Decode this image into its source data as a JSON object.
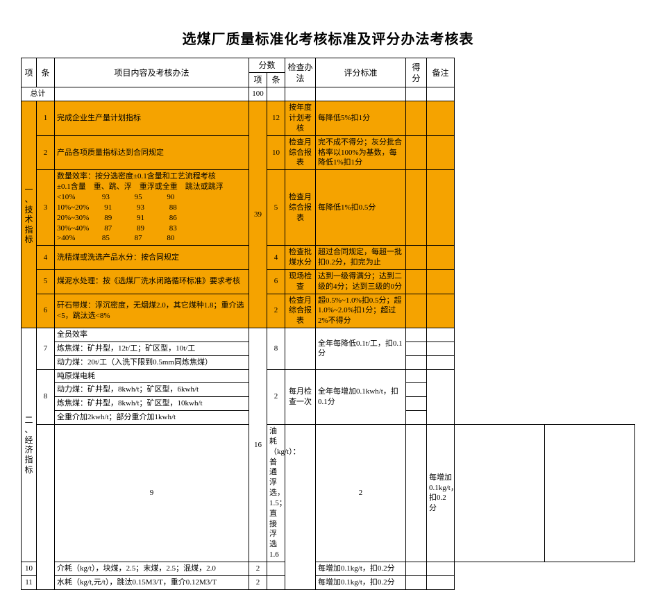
{
  "title": "选煤厂质量标准化考核标准及评分办法考核表",
  "headers": {
    "xiang": "项",
    "tiao": "条",
    "content": "项目内容及考核办法",
    "fenshu": "分数",
    "fen_xiang": "项",
    "fen_tiao": "条",
    "method": "检查办法",
    "std": "评分标准",
    "score": "得分",
    "note": "备注"
  },
  "total": {
    "label": "总计",
    "score": "100"
  },
  "colors": {
    "highlight": "#f5a300",
    "border": "#000000",
    "background": "#ffffff"
  },
  "section1": {
    "label": "一\n、\n技\n术\n指\n标",
    "xiang_score": "39",
    "rows": [
      {
        "no": "1",
        "content": "完成企业生产量计划指标",
        "tiao_score": "12",
        "method": "按年度\n计划考\n核",
        "std": "每降低5%扣1分"
      },
      {
        "no": "2",
        "content": "产品各项质量指标达到合同规定",
        "tiao_score": "10",
        "method": "检查月\n综合报\n表",
        "std": "完不成不得分；灰分批合格率以100%为基数，每降低1%扣1分"
      },
      {
        "no": "3",
        "content": "数量效率：按分选密度±0.1含量和工艺流程考核\n±0.1含量    重、跳、浮    重浮或全重    跳汰或跳浮\n<10%              93             95             90\n10%~20%        91             93             88\n20%~30%        89             91             86\n30%~40%        87             89             83\n>40%              85             87             80",
        "tiao_score": "5",
        "method": "检查月\n综合报\n表",
        "std": "每降低1%扣0.5分"
      },
      {
        "no": "4",
        "content": "洗精煤或洗选产品水分：按合同规定",
        "tiao_score": "4",
        "method": "检查批\n煤水分",
        "std": "超过合同规定，每超一批扣0.2分，扣完为止"
      },
      {
        "no": "5",
        "content": "煤泥水处理：按《选煤厂洗水闭路循环标准》要求考核",
        "tiao_score": "6",
        "method": "现场检\n查",
        "std": "达到一级得满分；达到二级的4分；达到三级的0分"
      },
      {
        "no": "6",
        "content": "矸石带煤：浮沉密度，无烟煤2.0，其它煤种1.8；重介选<5，跳汰选<8%",
        "tiao_score": "2",
        "method": "检查月\n综合报\n表",
        "std": "超0.5%~1.0%扣0.5分；超1.0%~2.0%扣1分；超过2%不得分"
      }
    ]
  },
  "section2": {
    "label": "二\n、\n经\n济\n指\n标",
    "xiang_score": "16",
    "rows": [
      {
        "no": "7",
        "lines": [
          "全员效率",
          "炼焦煤：矿井型，12t/工；矿区型，10t/工",
          "动力煤：20t/工（入洗下限到0.5mm同炼焦煤）"
        ],
        "tiao_score": "8",
        "std": "全年每降低0.1t/工，扣0.1分"
      },
      {
        "no": "8",
        "lines": [
          "吨原煤电耗",
          "动力煤：矿井型，8kwh/t；矿区型，6kwh/t",
          "炼焦煤：矿井型，8kwh/t；矿区型，10kwh/t",
          "全重介加2kwh/t；部分重介加1kwh/t"
        ],
        "tiao_score": "2",
        "method": "每月检\n查一次",
        "std": "全年每增加0.1kwh/t，扣0.1分"
      },
      {
        "no": "9",
        "content": "油耗（kg/t）：普通浮选，1.5；直接浮选1.6",
        "tiao_score": "2",
        "std": "每增加0.1kg/t，扣0.2分"
      },
      {
        "no": "10",
        "content": "介耗（kg/t），块煤，2.5；末煤，2.5；混煤，2.0",
        "tiao_score": "2",
        "std": "每增加0.1kg/t，扣0.2分"
      },
      {
        "no": "11",
        "content": "水耗（kg/t,元/t），跳汰0.15M3/T，重介0.12M3/T",
        "tiao_score": "2",
        "std": "每增加0.1kg/t，扣0.2分"
      }
    ]
  }
}
